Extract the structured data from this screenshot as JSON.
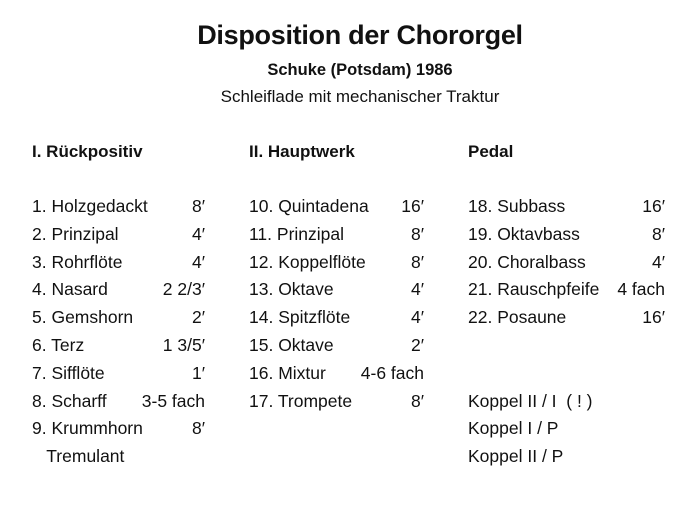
{
  "title": "Disposition der Chororgel",
  "subtitle": "Schuke (Potsdam) 1986",
  "subtitle2": "Schleiflade mit mechanischer Traktur",
  "divisions": [
    {
      "heading": "I. Rückpositiv",
      "stops": [
        {
          "name": "1. Holzgedackt",
          "value": "8′"
        },
        {
          "name": "2. Prinzipal",
          "value": "4′"
        },
        {
          "name": "3. Rohrflöte",
          "value": "4′"
        },
        {
          "name": "4. Nasard",
          "value": "2 2/3′"
        },
        {
          "name": "5. Gemshorn",
          "value": "2′"
        },
        {
          "name": "6. Terz",
          "value": "1 3/5′"
        },
        {
          "name": "7. Sifflöte",
          "value": "1′"
        },
        {
          "name": "8. Scharff",
          "value": "3-5 fach"
        },
        {
          "name": "9. Krummhorn",
          "value": "8′"
        },
        {
          "name": "   Tremulant",
          "value": ""
        }
      ],
      "couplers": []
    },
    {
      "heading": "II. Hauptwerk",
      "stops": [
        {
          "name": "10. Quintadena",
          "value": "16′"
        },
        {
          "name": "11. Prinzipal",
          "value": "8′"
        },
        {
          "name": "12. Koppelflöte",
          "value": "8′"
        },
        {
          "name": "13. Oktave",
          "value": "4′"
        },
        {
          "name": "14. Spitzflöte",
          "value": "4′"
        },
        {
          "name": "15. Oktave",
          "value": "2′"
        },
        {
          "name": "16. Mixtur",
          "value": "4-6 fach"
        },
        {
          "name": "17. Trompete",
          "value": "8′"
        }
      ],
      "couplers": []
    },
    {
      "heading": "Pedal",
      "stops": [
        {
          "name": "18. Subbass",
          "value": "16′"
        },
        {
          "name": "19. Oktavbass",
          "value": "8′"
        },
        {
          "name": "20. Choralbass",
          "value": "4′"
        },
        {
          "name": "21. Rauschpfeife",
          "value": "4 fach"
        },
        {
          "name": "22. Posaune",
          "value": "16′"
        }
      ],
      "couplers": [
        "Koppel II / I  ( ! )",
        "Koppel I / P",
        "Koppel II / P"
      ]
    }
  ]
}
